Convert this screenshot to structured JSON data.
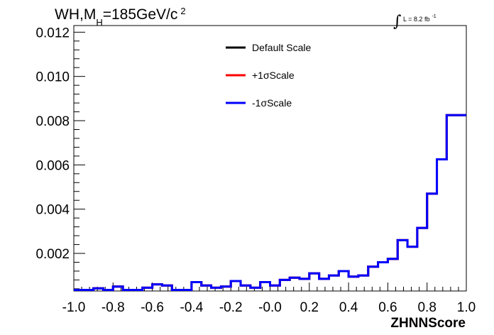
{
  "title": {
    "process": "WH,M",
    "subscript": "H",
    "mass": "=185GeV/c",
    "superscript": "2"
  },
  "luminosity": {
    "integral_symbol": "∫",
    "text": "L = 8.2 fb",
    "superscript": "-1"
  },
  "chart_data": {
    "type": "line",
    "style": "step-histogram",
    "xlabel": "ZHNNScore",
    "ylabel": "",
    "xlim": [
      -1.0,
      1.0
    ],
    "ylim": [
      0.0003,
      0.0123
    ],
    "x_ticks": [
      "-1.0",
      "-0.8",
      "-0.6",
      "-0.4",
      "-0.2",
      "-0.0",
      "0.2",
      "0.4",
      "0.6",
      "0.8",
      "1.0"
    ],
    "y_ticks": [
      "0.002",
      "0.004",
      "0.006",
      "0.008",
      "0.010",
      "0.012"
    ],
    "bin_edges_start": -1.0,
    "bin_width": 0.05,
    "legend_position": "top-center",
    "grid": false,
    "series": [
      {
        "name": "Default Scale",
        "color": "#000000",
        "values": [
          0.00035,
          0.00035,
          0.00042,
          0.00035,
          0.0005,
          0.00035,
          0.00035,
          0.00045,
          0.0006,
          0.00055,
          0.00035,
          0.00035,
          0.0007,
          0.00055,
          0.00045,
          0.0005,
          0.00075,
          0.00055,
          0.00045,
          0.0007,
          0.00055,
          0.0008,
          0.0009,
          0.00085,
          0.0011,
          0.00085,
          0.001,
          0.0012,
          0.00095,
          0.001,
          0.0014,
          0.0016,
          0.00175,
          0.0026,
          0.0023,
          0.00315,
          0.0047,
          0.00625,
          0.00825,
          0.00825
        ]
      },
      {
        "name": "+1σScale",
        "color": "#ff0000",
        "values": [
          0.00035,
          0.00035,
          0.00042,
          0.00035,
          0.0005,
          0.00035,
          0.00035,
          0.00045,
          0.0006,
          0.00055,
          0.00035,
          0.00035,
          0.0007,
          0.00055,
          0.00045,
          0.0005,
          0.00075,
          0.00055,
          0.00045,
          0.0007,
          0.00055,
          0.0008,
          0.0009,
          0.00085,
          0.0011,
          0.00085,
          0.001,
          0.0012,
          0.00095,
          0.001,
          0.0014,
          0.0016,
          0.00175,
          0.0026,
          0.0023,
          0.00315,
          0.0047,
          0.00625,
          0.00825,
          0.00825
        ]
      },
      {
        "name": "-1σScale",
        "color": "#0000ff",
        "values": [
          0.00035,
          0.00035,
          0.00042,
          0.00035,
          0.0005,
          0.00035,
          0.00035,
          0.00045,
          0.0006,
          0.00055,
          0.00035,
          0.00035,
          0.0007,
          0.00055,
          0.00045,
          0.0005,
          0.00075,
          0.00055,
          0.00045,
          0.0007,
          0.00055,
          0.0008,
          0.0009,
          0.00085,
          0.0011,
          0.00085,
          0.001,
          0.0012,
          0.00095,
          0.001,
          0.0014,
          0.0016,
          0.00175,
          0.0026,
          0.0023,
          0.00315,
          0.0047,
          0.00625,
          0.00825,
          0.00825
        ]
      }
    ]
  }
}
